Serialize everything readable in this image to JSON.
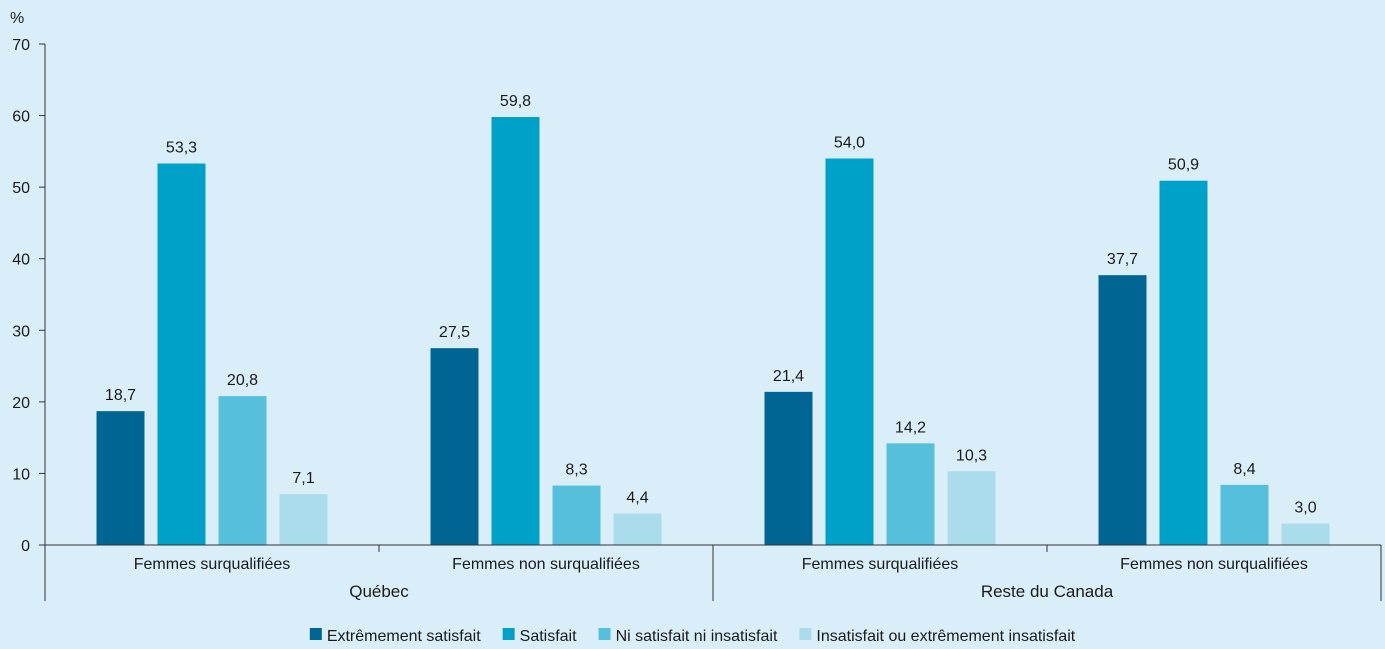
{
  "chart_data": {
    "type": "bar",
    "ylabel": "%",
    "ylim": [
      0,
      70
    ],
    "yticks": [
      0,
      10,
      20,
      30,
      40,
      50,
      60,
      70
    ],
    "groups": [
      {
        "label": "Québec",
        "categories": [
          "Femmes surqualifiées",
          "Femmes non surqualifiées"
        ]
      },
      {
        "label": "Reste du Canada",
        "categories": [
          "Femmes surqualifiées",
          "Femmes non surqualifiées"
        ]
      }
    ],
    "series": [
      {
        "name": "Extrêmement satisfait",
        "color": "#006592",
        "values": [
          18.7,
          27.5,
          21.4,
          37.7
        ],
        "labels": [
          "18,7",
          "27,5",
          "21,4",
          "37,7"
        ]
      },
      {
        "name": "Satisfait",
        "color": "#00a1c9",
        "values": [
          53.3,
          59.8,
          54.0,
          50.9
        ],
        "labels": [
          "53,3",
          "59,8",
          "54,0",
          "50,9"
        ]
      },
      {
        "name": "Ni satisfait ni insatisfait",
        "color": "#56bfdc",
        "values": [
          20.8,
          8.3,
          14.2,
          8.4
        ],
        "labels": [
          "20,8",
          "8,3",
          "14,2",
          "8,4"
        ]
      },
      {
        "name": "Insatisfait ou extrêmement insatisfait",
        "color": "#abdcec",
        "values": [
          7.1,
          4.4,
          10.3,
          3.0
        ],
        "labels": [
          "7,1",
          "4,4",
          "10,3",
          "3,0"
        ]
      }
    ],
    "legend_position": "bottom",
    "grid": false
  }
}
